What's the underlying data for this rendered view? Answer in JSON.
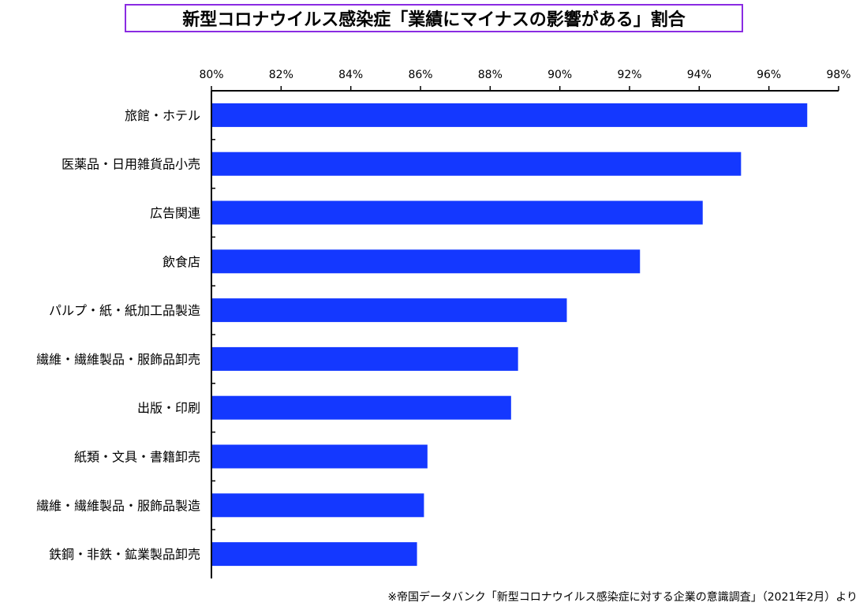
{
  "title": "新型コロナウイルス感染症「業績にマイナスの影響がある」割合",
  "source_note": "※帝国データバンク「新型コロナウイルス感染症に対する企業の意識調査」（2021年2月）より",
  "colors": {
    "bar": "#1438ff",
    "title_border": "#8a2be2",
    "axis": "#000000"
  },
  "chart_data": {
    "type": "bar",
    "orientation": "horizontal",
    "title": "新型コロナウイルス感染症「業績にマイナスの影響がある」割合",
    "xlabel": "",
    "ylabel": "",
    "xlim": [
      80,
      98
    ],
    "x_ticks": [
      "80%",
      "82%",
      "84%",
      "86%",
      "88%",
      "90%",
      "92%",
      "94%",
      "96%",
      "98%"
    ],
    "x_axis_position": "top",
    "grid": false,
    "legend": "none",
    "categories": [
      "旅館・ホテル",
      "医薬品・日用雑貨品小売",
      "広告関連",
      "飲食店",
      "パルプ・紙・紙加工品製造",
      "繊維・繊維製品・服飾品卸売",
      "出版・印刷",
      "紙類・文具・書籍卸売",
      "繊維・繊維製品・服飾品製造",
      "鉄鋼・非鉄・鉱業製品卸売"
    ],
    "values": [
      97.1,
      95.2,
      94.1,
      92.3,
      90.2,
      88.8,
      88.6,
      86.2,
      86.1,
      85.9
    ]
  }
}
